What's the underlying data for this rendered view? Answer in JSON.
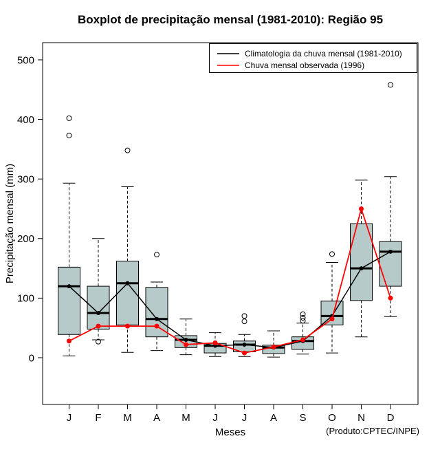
{
  "title": "Boxplot de precipitação mensal (1981-2010): Região 95",
  "footnote": "(Produto:CPTEC/INPE)",
  "axes": {
    "y_label": "Precipitação mensal (mm)",
    "x_label": "Meses",
    "y_ticks": [
      0,
      100,
      200,
      300,
      400,
      500
    ]
  },
  "legend": [
    {
      "label": "Climatologia da chuva mensal (1981-2010)",
      "color": "#000000"
    },
    {
      "label": "Chuva mensal observada (1996)",
      "color": "#ff0000"
    }
  ],
  "colors": {
    "box_fill": "#b6caca",
    "box_stroke": "#000000",
    "climatology": "#000000",
    "observed": "#ff0000"
  },
  "chart_data": {
    "type": "boxplot+line",
    "title": "Boxplot de precipitação mensal (1981-2010): Região 95",
    "xlabel": "Meses",
    "ylabel": "Precipitação mensal (mm)",
    "ylim": [
      0,
      500
    ],
    "grid": false,
    "legend_position": "top-right-inside",
    "categories": [
      "J",
      "F",
      "M",
      "A",
      "M",
      "J",
      "J",
      "A",
      "S",
      "O",
      "N",
      "D"
    ],
    "boxes": [
      {
        "month": "J",
        "low": 3,
        "q1": 39,
        "median": 120,
        "q3": 152,
        "high": 293,
        "outliers": [
          373,
          402
        ]
      },
      {
        "month": "F",
        "low": 30,
        "q1": 48,
        "median": 75,
        "q3": 120,
        "high": 200,
        "outliers": [
          27
        ]
      },
      {
        "month": "M",
        "low": 9,
        "q1": 55,
        "median": 125,
        "q3": 162,
        "high": 287,
        "outliers": [
          348
        ]
      },
      {
        "month": "A",
        "low": 12,
        "q1": 35,
        "median": 65,
        "q3": 118,
        "high": 127,
        "outliers": [
          173
        ]
      },
      {
        "month": "M",
        "low": 5,
        "q1": 17,
        "median": 30,
        "q3": 37,
        "high": 65,
        "outliers": []
      },
      {
        "month": "J",
        "low": 2,
        "q1": 8,
        "median": 20,
        "q3": 24,
        "high": 42,
        "outliers": []
      },
      {
        "month": "J",
        "low": 2,
        "q1": 10,
        "median": 22,
        "q3": 28,
        "high": 39,
        "outliers": [
          61,
          70
        ]
      },
      {
        "month": "A",
        "low": 1,
        "q1": 7,
        "median": 17,
        "q3": 21,
        "high": 45,
        "outliers": []
      },
      {
        "month": "S",
        "low": 6,
        "q1": 14,
        "median": 28,
        "q3": 35,
        "high": 58,
        "outliers": [
          62,
          67,
          73
        ]
      },
      {
        "month": "O",
        "low": 8,
        "q1": 55,
        "median": 70,
        "q3": 95,
        "high": 160,
        "outliers": [
          174
        ]
      },
      {
        "month": "N",
        "low": 35,
        "q1": 96,
        "median": 150,
        "q3": 225,
        "high": 298,
        "outliers": []
      },
      {
        "month": "D",
        "low": 69,
        "q1": 120,
        "median": 178,
        "q3": 195,
        "high": 304,
        "outliers": [
          458
        ]
      }
    ],
    "series": [
      {
        "name": "Climatologia da chuva mensal (1981-2010)",
        "color": "#000000",
        "values": [
          120,
          75,
          125,
          65,
          30,
          20,
          22,
          17,
          28,
          70,
          150,
          178
        ]
      },
      {
        "name": "Chuva mensal observada (1996)",
        "color": "#ff0000",
        "values": [
          28,
          53,
          53,
          53,
          22,
          25,
          8,
          18,
          30,
          65,
          250,
          100
        ]
      }
    ]
  }
}
